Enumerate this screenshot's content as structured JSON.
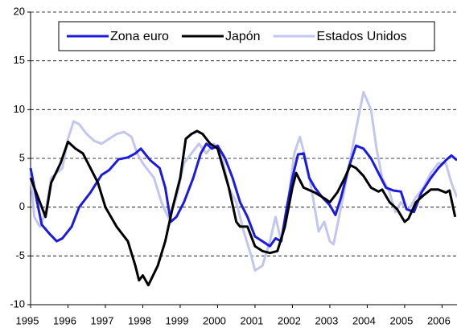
{
  "chart_data": {
    "type": "line",
    "xlim": [
      1995,
      2006.4
    ],
    "xticks": [
      1995,
      1996,
      1997,
      1998,
      1999,
      2000,
      2001,
      2002,
      2003,
      2004,
      2005,
      2006
    ],
    "ylim": [
      -10,
      20
    ],
    "yticks": [
      -10,
      -5,
      0,
      5,
      10,
      15,
      20
    ],
    "grid": true,
    "legend": "top",
    "series": [
      {
        "name": "Zona euro",
        "color": "#1a1ae0",
        "x": [
          1995.0,
          1995.15,
          1995.3,
          1995.5,
          1995.7,
          1995.85,
          1996.1,
          1996.3,
          1996.6,
          1996.9,
          1997.1,
          1997.35,
          1997.6,
          1997.8,
          1997.95,
          1998.2,
          1998.45,
          1998.6,
          1998.75,
          1998.9,
          1999.1,
          1999.35,
          1999.55,
          1999.7,
          1999.85,
          2000.0,
          2000.2,
          2000.4,
          2000.6,
          2000.8,
          2001.0,
          2001.2,
          2001.4,
          2001.55,
          2001.7,
          2001.85,
          2002.0,
          2002.15,
          2002.3,
          2002.45,
          2002.6,
          2002.8,
          2003.0,
          2003.15,
          2003.3,
          2003.5,
          2003.7,
          2003.9,
          2004.1,
          2004.3,
          2004.5,
          2004.7,
          2004.9,
          2005.05,
          2005.25,
          2005.45,
          2005.7,
          2005.9,
          2006.1,
          2006.25,
          2006.4
        ],
        "values": [
          4,
          1,
          -1.8,
          -2.7,
          -3.5,
          -3.2,
          -2,
          0,
          1.5,
          3.3,
          3.8,
          4.9,
          5.1,
          5.5,
          6,
          4.8,
          4,
          2,
          -1.5,
          -1,
          0.5,
          3,
          5.5,
          6.5,
          6,
          6.3,
          5,
          3,
          0.5,
          -1,
          -3,
          -3.5,
          -4,
          -3.2,
          -3.5,
          0,
          3,
          5.4,
          5.5,
          3,
          2,
          1,
          0.2,
          -0.8,
          1,
          4,
          6.3,
          6,
          5,
          3.5,
          2,
          1.7,
          1.6,
          -0.2,
          -0.5,
          1.5,
          3,
          4,
          4.8,
          5.3,
          4.8
        ]
      },
      {
        "name": "Japón",
        "color": "#000000",
        "x": [
          1995.0,
          1995.2,
          1995.4,
          1995.55,
          1995.8,
          1996.0,
          1996.2,
          1996.4,
          1996.6,
          1996.8,
          1997.0,
          1997.3,
          1997.6,
          1997.8,
          1997.9,
          1998.0,
          1998.15,
          1998.4,
          1998.6,
          1998.8,
          1999.0,
          1999.15,
          1999.3,
          1999.45,
          1999.6,
          1999.8,
          2000.0,
          2000.3,
          2000.5,
          2000.6,
          2000.8,
          2001.0,
          2001.2,
          2001.4,
          2001.6,
          2001.8,
          2002.0,
          2002.1,
          2002.3,
          2002.6,
          2002.9,
          2003.0,
          2003.2,
          2003.4,
          2003.55,
          2003.7,
          2003.9,
          2004.1,
          2004.3,
          2004.4,
          2004.6,
          2004.8,
          2005.0,
          2005.1,
          2005.3,
          2005.5,
          2005.7,
          2005.9,
          2006.1,
          2006.2,
          2006.35
        ],
        "values": [
          3,
          1,
          -1,
          2.5,
          4.5,
          6.7,
          6,
          5.5,
          4,
          2.5,
          0,
          -2,
          -3.5,
          -6,
          -7.5,
          -7,
          -8,
          -6,
          -3.5,
          0,
          3,
          7,
          7.5,
          7.8,
          7.5,
          6.5,
          6,
          2,
          -1.5,
          -2,
          -2,
          -4,
          -4.5,
          -4.7,
          -4.5,
          -2,
          2,
          3.5,
          2,
          1.5,
          0.8,
          0.5,
          1.5,
          3,
          4.3,
          4,
          3.2,
          2,
          1.6,
          1.8,
          0.5,
          -0.2,
          -1.5,
          -1.2,
          0.5,
          1.2,
          1.8,
          1.8,
          1.5,
          1.7,
          -1
        ]
      },
      {
        "name": "Estados Unidos",
        "color": "#c3c6f0",
        "x": [
          1995.0,
          1995.1,
          1995.25,
          1995.4,
          1995.55,
          1995.7,
          1995.85,
          1996.0,
          1996.15,
          1996.3,
          1996.5,
          1996.7,
          1996.9,
          1997.1,
          1997.3,
          1997.5,
          1997.7,
          1997.85,
          1998.0,
          1998.3,
          1998.5,
          1998.7,
          1998.9,
          1999.1,
          1999.3,
          1999.5,
          1999.7,
          1999.9,
          2000.1,
          2000.3,
          2000.5,
          2000.7,
          2000.9,
          2001.0,
          2001.2,
          2001.4,
          2001.55,
          2001.7,
          2001.9,
          2002.05,
          2002.2,
          2002.35,
          2002.55,
          2002.7,
          2002.85,
          2003.0,
          2003.1,
          2003.3,
          2003.5,
          2003.7,
          2003.9,
          2004.1,
          2004.25,
          2004.4,
          2004.6,
          2004.75,
          2004.9,
          2005.1,
          2005.3,
          2005.5,
          2005.7,
          2005.9,
          2006.1,
          2006.25,
          2006.4
        ],
        "values": [
          3.5,
          -1,
          -2,
          -0.5,
          3,
          3.5,
          4,
          7,
          8.8,
          8.5,
          7.5,
          6.8,
          6.5,
          7,
          7.5,
          7.7,
          7.2,
          5.5,
          4.5,
          3,
          0.5,
          -1.2,
          1,
          4.5,
          5.5,
          6.5,
          5.5,
          6.5,
          5.5,
          2,
          0.5,
          -2.5,
          -5,
          -6.5,
          -6,
          -3.5,
          -1,
          -3.5,
          1,
          5.5,
          7.2,
          5,
          1,
          -2.5,
          -1.5,
          -3.5,
          -3.8,
          0,
          4,
          8,
          11.8,
          10,
          6,
          3,
          1.5,
          -0.5,
          0.5,
          -0.3,
          1,
          2,
          3.5,
          4.5,
          4.5,
          2.5,
          1
        ]
      }
    ]
  }
}
